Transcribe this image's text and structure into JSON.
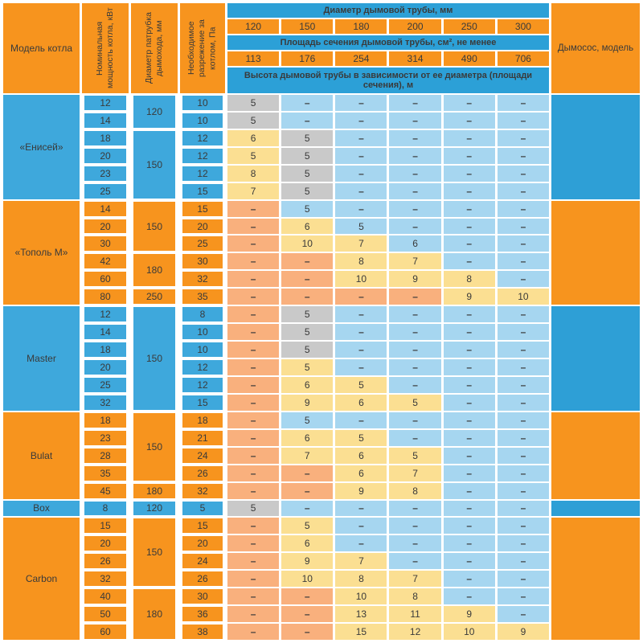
{
  "colors": {
    "orange": "#F7941E",
    "blue": "#3EA8DC",
    "blue_deep": "#2E9FD6",
    "blue_strip": "#2CA0D7",
    "light_blue": "#A6D6F0",
    "salmon": "#F9B07D",
    "yellow": "#FBDF92",
    "gray": "#C9C9C9",
    "text": "#3A3A3A"
  },
  "header": {
    "model": "Модель котла",
    "power": "Номинальная мощность котла, кВт",
    "nozzle_diameter": "Диаметр патрубка дымохода, мм",
    "draft": "Необходимое разрежение за котлом, Па",
    "chimney_diameter": "Диаметр дымовой трубы, мм",
    "diameters": [
      "120",
      "150",
      "180",
      "200",
      "250",
      "300"
    ],
    "section_area": "Площадь сечения дымовой трубы, см², не менее",
    "areas": [
      "113",
      "176",
      "254",
      "314",
      "490",
      "706"
    ],
    "chimney_height": "Высота дымовой трубы в зависимости от ее диаметра (площади сечения), м",
    "exhauster": "Дымосос, модель"
  },
  "dash": "–",
  "sections": [
    {
      "model": "«Енисей»",
      "theme": "blue",
      "diameter_groups": [
        {
          "value": "120",
          "span": 2
        },
        {
          "value": "150",
          "span": 4
        }
      ],
      "rows": [
        {
          "power": "12",
          "draft": "10",
          "heights": [
            [
              "5",
              "g"
            ],
            [
              "–",
              "b"
            ],
            [
              "–",
              "b"
            ],
            [
              "–",
              "b"
            ],
            [
              "–",
              "b"
            ],
            [
              "–",
              "b"
            ]
          ]
        },
        {
          "power": "14",
          "draft": "10",
          "heights": [
            [
              "5",
              "g"
            ],
            [
              "–",
              "b"
            ],
            [
              "–",
              "b"
            ],
            [
              "–",
              "b"
            ],
            [
              "–",
              "b"
            ],
            [
              "–",
              "b"
            ]
          ]
        },
        {
          "power": "18",
          "draft": "12",
          "heights": [
            [
              "6",
              "y"
            ],
            [
              "5",
              "g"
            ],
            [
              "–",
              "b"
            ],
            [
              "–",
              "b"
            ],
            [
              "–",
              "b"
            ],
            [
              "–",
              "b"
            ]
          ]
        },
        {
          "power": "20",
          "draft": "12",
          "heights": [
            [
              "5",
              "y"
            ],
            [
              "5",
              "g"
            ],
            [
              "–",
              "b"
            ],
            [
              "–",
              "b"
            ],
            [
              "–",
              "b"
            ],
            [
              "–",
              "b"
            ]
          ]
        },
        {
          "power": "23",
          "draft": "12",
          "heights": [
            [
              "8",
              "y"
            ],
            [
              "5",
              "g"
            ],
            [
              "–",
              "b"
            ],
            [
              "–",
              "b"
            ],
            [
              "–",
              "b"
            ],
            [
              "–",
              "b"
            ]
          ]
        },
        {
          "power": "25",
          "draft": "15",
          "heights": [
            [
              "7",
              "y"
            ],
            [
              "5",
              "g"
            ],
            [
              "–",
              "b"
            ],
            [
              "–",
              "b"
            ],
            [
              "–",
              "b"
            ],
            [
              "–",
              "b"
            ]
          ]
        }
      ]
    },
    {
      "model": "«Тополь М»",
      "theme": "orange",
      "diameter_groups": [
        {
          "value": "150",
          "span": 3
        },
        {
          "value": "180",
          "span": 2
        },
        {
          "value": "250",
          "span": 1
        }
      ],
      "rows": [
        {
          "power": "14",
          "draft": "15",
          "heights": [
            [
              "–",
              "s"
            ],
            [
              "5",
              "b"
            ],
            [
              "–",
              "b"
            ],
            [
              "–",
              "b"
            ],
            [
              "–",
              "b"
            ],
            [
              "–",
              "b"
            ]
          ]
        },
        {
          "power": "20",
          "draft": "20",
          "heights": [
            [
              "–",
              "s"
            ],
            [
              "6",
              "y"
            ],
            [
              "5",
              "b"
            ],
            [
              "–",
              "b"
            ],
            [
              "–",
              "b"
            ],
            [
              "–",
              "b"
            ]
          ]
        },
        {
          "power": "30",
          "draft": "25",
          "heights": [
            [
              "–",
              "s"
            ],
            [
              "10",
              "y"
            ],
            [
              "7",
              "y"
            ],
            [
              "6",
              "b"
            ],
            [
              "–",
              "b"
            ],
            [
              "–",
              "b"
            ]
          ]
        },
        {
          "power": "42",
          "draft": "30",
          "heights": [
            [
              "–",
              "s"
            ],
            [
              "–",
              "s"
            ],
            [
              "8",
              "y"
            ],
            [
              "7",
              "y"
            ],
            [
              "–",
              "b"
            ],
            [
              "–",
              "b"
            ]
          ]
        },
        {
          "power": "60",
          "draft": "32",
          "heights": [
            [
              "–",
              "s"
            ],
            [
              "–",
              "s"
            ],
            [
              "10",
              "y"
            ],
            [
              "9",
              "y"
            ],
            [
              "8",
              "y"
            ],
            [
              "–",
              "b"
            ]
          ]
        },
        {
          "power": "80",
          "draft": "35",
          "heights": [
            [
              "–",
              "s"
            ],
            [
              "–",
              "s"
            ],
            [
              "–",
              "s"
            ],
            [
              "–",
              "s"
            ],
            [
              "9",
              "y"
            ],
            [
              "10",
              "y"
            ]
          ]
        }
      ]
    },
    {
      "model": "Master",
      "theme": "blue",
      "diameter_groups": [
        {
          "value": "150",
          "span": 6
        }
      ],
      "rows": [
        {
          "power": "12",
          "draft": "8",
          "heights": [
            [
              "–",
              "s"
            ],
            [
              "5",
              "g"
            ],
            [
              "–",
              "b"
            ],
            [
              "–",
              "b"
            ],
            [
              "–",
              "b"
            ],
            [
              "–",
              "b"
            ]
          ]
        },
        {
          "power": "14",
          "draft": "10",
          "heights": [
            [
              "–",
              "s"
            ],
            [
              "5",
              "g"
            ],
            [
              "–",
              "b"
            ],
            [
              "–",
              "b"
            ],
            [
              "–",
              "b"
            ],
            [
              "–",
              "b"
            ]
          ]
        },
        {
          "power": "18",
          "draft": "10",
          "heights": [
            [
              "–",
              "s"
            ],
            [
              "5",
              "g"
            ],
            [
              "–",
              "b"
            ],
            [
              "–",
              "b"
            ],
            [
              "–",
              "b"
            ],
            [
              "–",
              "b"
            ]
          ]
        },
        {
          "power": "20",
          "draft": "12",
          "heights": [
            [
              "–",
              "s"
            ],
            [
              "5",
              "y"
            ],
            [
              "–",
              "b"
            ],
            [
              "–",
              "b"
            ],
            [
              "–",
              "b"
            ],
            [
              "–",
              "b"
            ]
          ]
        },
        {
          "power": "25",
          "draft": "12",
          "heights": [
            [
              "–",
              "s"
            ],
            [
              "6",
              "y"
            ],
            [
              "5",
              "y"
            ],
            [
              "–",
              "b"
            ],
            [
              "–",
              "b"
            ],
            [
              "–",
              "b"
            ]
          ]
        },
        {
          "power": "32",
          "draft": "15",
          "heights": [
            [
              "–",
              "s"
            ],
            [
              "9",
              "y"
            ],
            [
              "6",
              "y"
            ],
            [
              "5",
              "y"
            ],
            [
              "–",
              "b"
            ],
            [
              "–",
              "b"
            ]
          ]
        }
      ]
    },
    {
      "model": "Bulat",
      "theme": "orange",
      "diameter_groups": [
        {
          "value": "150",
          "span": 4
        },
        {
          "value": "180",
          "span": 1
        }
      ],
      "rows": [
        {
          "power": "18",
          "draft": "18",
          "heights": [
            [
              "–",
              "s"
            ],
            [
              "5",
              "b"
            ],
            [
              "–",
              "b"
            ],
            [
              "–",
              "b"
            ],
            [
              "–",
              "b"
            ],
            [
              "–",
              "b"
            ]
          ]
        },
        {
          "power": "23",
          "draft": "21",
          "heights": [
            [
              "–",
              "s"
            ],
            [
              "6",
              "y"
            ],
            [
              "5",
              "y"
            ],
            [
              "–",
              "b"
            ],
            [
              "–",
              "b"
            ],
            [
              "–",
              "b"
            ]
          ]
        },
        {
          "power": "28",
          "draft": "24",
          "heights": [
            [
              "–",
              "s"
            ],
            [
              "7",
              "y"
            ],
            [
              "6",
              "y"
            ],
            [
              "5",
              "y"
            ],
            [
              "–",
              "b"
            ],
            [
              "–",
              "b"
            ]
          ]
        },
        {
          "power": "35",
          "draft": "26",
          "heights": [
            [
              "–",
              "s"
            ],
            [
              "–",
              "s"
            ],
            [
              "6",
              "y"
            ],
            [
              "7",
              "y"
            ],
            [
              "–",
              "b"
            ],
            [
              "–",
              "b"
            ]
          ]
        },
        {
          "power": "45",
          "draft": "32",
          "heights": [
            [
              "–",
              "s"
            ],
            [
              "–",
              "s"
            ],
            [
              "9",
              "y"
            ],
            [
              "8",
              "y"
            ],
            [
              "–",
              "b"
            ],
            [
              "–",
              "b"
            ]
          ]
        }
      ]
    },
    {
      "model": "Box",
      "theme": "blue",
      "diameter_groups": [
        {
          "value": "120",
          "span": 1
        }
      ],
      "rows": [
        {
          "power": "8",
          "draft": "5",
          "heights": [
            [
              "5",
              "g"
            ],
            [
              "–",
              "b"
            ],
            [
              "–",
              "b"
            ],
            [
              "–",
              "b"
            ],
            [
              "–",
              "b"
            ],
            [
              "–",
              "b"
            ]
          ]
        }
      ]
    },
    {
      "model": "Carbon",
      "theme": "orange",
      "diameter_groups": [
        {
          "value": "150",
          "span": 4
        },
        {
          "value": "180",
          "span": 3
        }
      ],
      "rows": [
        {
          "power": "15",
          "draft": "15",
          "heights": [
            [
              "–",
              "s"
            ],
            [
              "5",
              "y"
            ],
            [
              "–",
              "b"
            ],
            [
              "–",
              "b"
            ],
            [
              "–",
              "b"
            ],
            [
              "–",
              "b"
            ]
          ]
        },
        {
          "power": "20",
          "draft": "20",
          "heights": [
            [
              "–",
              "s"
            ],
            [
              "6",
              "y"
            ],
            [
              "–",
              "b"
            ],
            [
              "–",
              "b"
            ],
            [
              "–",
              "b"
            ],
            [
              "–",
              "b"
            ]
          ]
        },
        {
          "power": "26",
          "draft": "24",
          "heights": [
            [
              "–",
              "s"
            ],
            [
              "9",
              "y"
            ],
            [
              "7",
              "y"
            ],
            [
              "–",
              "b"
            ],
            [
              "–",
              "b"
            ],
            [
              "–",
              "b"
            ]
          ]
        },
        {
          "power": "32",
          "draft": "26",
          "heights": [
            [
              "–",
              "s"
            ],
            [
              "10",
              "y"
            ],
            [
              "8",
              "y"
            ],
            [
              "7",
              "y"
            ],
            [
              "–",
              "b"
            ],
            [
              "–",
              "b"
            ]
          ]
        },
        {
          "power": "40",
          "draft": "30",
          "heights": [
            [
              "–",
              "s"
            ],
            [
              "–",
              "s"
            ],
            [
              "10",
              "y"
            ],
            [
              "8",
              "y"
            ],
            [
              "–",
              "b"
            ],
            [
              "–",
              "b"
            ]
          ]
        },
        {
          "power": "50",
          "draft": "36",
          "heights": [
            [
              "–",
              "s"
            ],
            [
              "–",
              "s"
            ],
            [
              "13",
              "y"
            ],
            [
              "11",
              "y"
            ],
            [
              "9",
              "y"
            ],
            [
              "–",
              "b"
            ]
          ]
        },
        {
          "power": "60",
          "draft": "38",
          "heights": [
            [
              "–",
              "s"
            ],
            [
              "–",
              "s"
            ],
            [
              "15",
              "y"
            ],
            [
              "12",
              "y"
            ],
            [
              "10",
              "y"
            ],
            [
              "9",
              "y"
            ]
          ]
        }
      ]
    }
  ]
}
